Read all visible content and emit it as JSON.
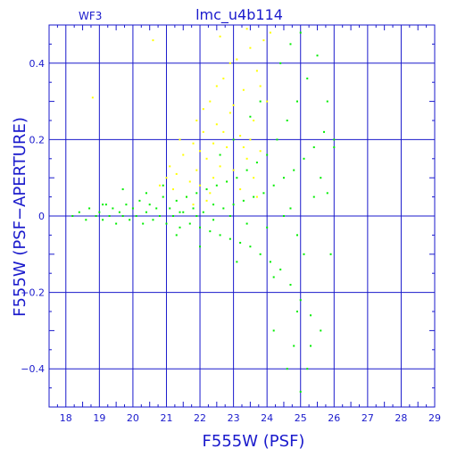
{
  "chart_data": {
    "type": "scatter",
    "title": "lmc_u4b114",
    "subtitle": "WF3",
    "xlabel": "F555W (PSF)",
    "ylabel": "F555W (PSF−APERTURE)",
    "xlim": [
      17.5,
      29.0
    ],
    "ylim": [
      -0.5,
      0.5
    ],
    "x_ticks": [
      "18",
      "19",
      "20",
      "21",
      "22",
      "23",
      "24",
      "25",
      "26",
      "27",
      "28",
      "29"
    ],
    "y_ticks": [
      "0.4",
      "0.2",
      "0",
      "−0.2",
      "−0.4"
    ],
    "x_tick_values": [
      18,
      19,
      20,
      21,
      22,
      23,
      24,
      25,
      26,
      27,
      28,
      29
    ],
    "y_tick_values": [
      0.4,
      0.2,
      0,
      -0.2,
      -0.4
    ],
    "grid": true,
    "legend": false,
    "series": [
      {
        "color": "#ffff00",
        "points": [
          [
            21.1,
            0.13
          ],
          [
            21.3,
            0.11
          ],
          [
            21.5,
            0.16
          ],
          [
            21.7,
            0.09
          ],
          [
            21.8,
            0.19
          ],
          [
            21.9,
            0.12
          ],
          [
            22.0,
            0.08
          ],
          [
            22.1,
            0.22
          ],
          [
            22.2,
            0.15
          ],
          [
            22.3,
            0.3
          ],
          [
            22.4,
            0.1
          ],
          [
            22.5,
            0.24
          ],
          [
            22.6,
            0.13
          ],
          [
            22.7,
            0.36
          ],
          [
            22.8,
            0.18
          ],
          [
            22.9,
            0.27
          ],
          [
            23.0,
            0.12
          ],
          [
            23.1,
            0.41
          ],
          [
            23.2,
            0.21
          ],
          [
            23.3,
            0.33
          ],
          [
            23.4,
            0.15
          ],
          [
            23.5,
            0.44
          ],
          [
            23.6,
            0.25
          ],
          [
            23.7,
            0.38
          ],
          [
            23.8,
            0.17
          ],
          [
            23.9,
            0.46
          ],
          [
            21.2,
            0.07
          ],
          [
            21.6,
            0.05
          ],
          [
            22.0,
            0.17
          ],
          [
            22.4,
            0.19
          ],
          [
            22.8,
            0.09
          ],
          [
            23.2,
            0.07
          ],
          [
            23.6,
            0.1
          ],
          [
            24.0,
            0.3
          ],
          [
            24.1,
            0.48
          ],
          [
            23.0,
            0.29
          ],
          [
            22.5,
            0.34
          ],
          [
            22.1,
            0.28
          ],
          [
            21.4,
            0.2
          ],
          [
            18.8,
            0.31
          ],
          [
            20.6,
            0.46
          ],
          [
            22.6,
            0.47
          ],
          [
            23.4,
            0.49
          ],
          [
            22.9,
            0.4
          ],
          [
            21.9,
            0.25
          ],
          [
            21.0,
            0.1
          ],
          [
            20.8,
            0.08
          ],
          [
            22.3,
            0.06
          ],
          [
            23.8,
            0.34
          ],
          [
            23.3,
            0.18
          ],
          [
            22.7,
            0.22
          ],
          [
            21.8,
            0.03
          ],
          [
            22.2,
            0.04
          ],
          [
            23.7,
            0.05
          ],
          [
            23.5,
            0.2
          ]
        ]
      },
      {
        "color": "#00ee00",
        "points": [
          [
            18.2,
            0.0
          ],
          [
            18.4,
            0.01
          ],
          [
            18.6,
            -0.01
          ],
          [
            18.7,
            0.02
          ],
          [
            18.9,
            0.0
          ],
          [
            19.0,
            0.01
          ],
          [
            19.1,
            -0.01
          ],
          [
            19.2,
            0.03
          ],
          [
            19.3,
            0.0
          ],
          [
            19.4,
            0.02
          ],
          [
            19.5,
            -0.02
          ],
          [
            19.6,
            0.01
          ],
          [
            19.7,
            0.0
          ],
          [
            19.8,
            0.03
          ],
          [
            19.9,
            -0.01
          ],
          [
            20.0,
            0.02
          ],
          [
            20.1,
            0.0
          ],
          [
            20.2,
            0.04
          ],
          [
            20.3,
            -0.02
          ],
          [
            20.4,
            0.01
          ],
          [
            20.5,
            0.03
          ],
          [
            20.6,
            -0.01
          ],
          [
            20.7,
            0.02
          ],
          [
            20.8,
            0.0
          ],
          [
            20.9,
            0.05
          ],
          [
            21.0,
            -0.02
          ],
          [
            21.1,
            0.02
          ],
          [
            21.2,
            0.0
          ],
          [
            21.3,
            0.04
          ],
          [
            21.4,
            -0.03
          ],
          [
            21.5,
            0.01
          ],
          [
            21.6,
            0.05
          ],
          [
            21.7,
            -0.02
          ],
          [
            21.8,
            0.02
          ],
          [
            21.9,
            0.06
          ],
          [
            22.0,
            -0.03
          ],
          [
            22.1,
            0.01
          ],
          [
            22.2,
            0.07
          ],
          [
            22.3,
            -0.04
          ],
          [
            22.4,
            0.03
          ],
          [
            22.5,
            0.08
          ],
          [
            22.6,
            -0.05
          ],
          [
            22.7,
            0.02
          ],
          [
            22.8,
            0.09
          ],
          [
            22.9,
            -0.06
          ],
          [
            23.0,
            0.03
          ],
          [
            23.1,
            0.1
          ],
          [
            23.2,
            -0.07
          ],
          [
            23.3,
            0.04
          ],
          [
            23.4,
            0.12
          ],
          [
            23.5,
            -0.08
          ],
          [
            23.6,
            0.05
          ],
          [
            23.7,
            0.14
          ],
          [
            23.8,
            -0.1
          ],
          [
            23.9,
            0.06
          ],
          [
            24.0,
            0.16
          ],
          [
            24.1,
            -0.12
          ],
          [
            24.2,
            0.08
          ],
          [
            24.3,
            0.2
          ],
          [
            24.4,
            -0.14
          ],
          [
            24.5,
            0.1
          ],
          [
            24.6,
            0.25
          ],
          [
            24.7,
            -0.18
          ],
          [
            24.8,
            0.12
          ],
          [
            24.9,
            0.3
          ],
          [
            25.0,
            -0.22
          ],
          [
            25.1,
            0.15
          ],
          [
            25.2,
            0.36
          ],
          [
            25.3,
            -0.26
          ],
          [
            25.4,
            0.18
          ],
          [
            25.5,
            0.42
          ],
          [
            25.6,
            -0.3
          ],
          [
            25.7,
            0.22
          ],
          [
            25.8,
            0.06
          ],
          [
            25.9,
            -0.1
          ],
          [
            26.0,
            0.18
          ],
          [
            24.2,
            -0.3
          ],
          [
            24.6,
            -0.4
          ],
          [
            25.0,
            -0.46
          ],
          [
            24.8,
            -0.34
          ],
          [
            25.2,
            -0.4
          ],
          [
            24.4,
            0.4
          ],
          [
            24.7,
            0.45
          ],
          [
            25.0,
            0.48
          ],
          [
            23.8,
            0.3
          ],
          [
            23.5,
            0.26
          ],
          [
            23.0,
            0.2
          ],
          [
            22.6,
            0.16
          ],
          [
            24.9,
            -0.05
          ],
          [
            24.5,
            0.0
          ],
          [
            24.0,
            -0.03
          ],
          [
            23.4,
            -0.02
          ],
          [
            22.9,
            0.0
          ],
          [
            22.4,
            -0.01
          ],
          [
            21.9,
            0.0
          ],
          [
            21.4,
            0.01
          ],
          [
            20.4,
            0.06
          ],
          [
            19.7,
            0.07
          ],
          [
            20.9,
            0.08
          ],
          [
            19.1,
            0.03
          ],
          [
            21.3,
            -0.05
          ],
          [
            22.0,
            -0.08
          ],
          [
            23.1,
            -0.12
          ],
          [
            24.2,
            -0.16
          ],
          [
            24.9,
            -0.25
          ],
          [
            25.3,
            -0.34
          ],
          [
            25.1,
            -0.1
          ],
          [
            24.7,
            0.02
          ],
          [
            25.4,
            0.05
          ],
          [
            25.6,
            0.1
          ],
          [
            25.8,
            0.3
          ],
          [
            26.0,
            0.2
          ]
        ]
      }
    ]
  }
}
